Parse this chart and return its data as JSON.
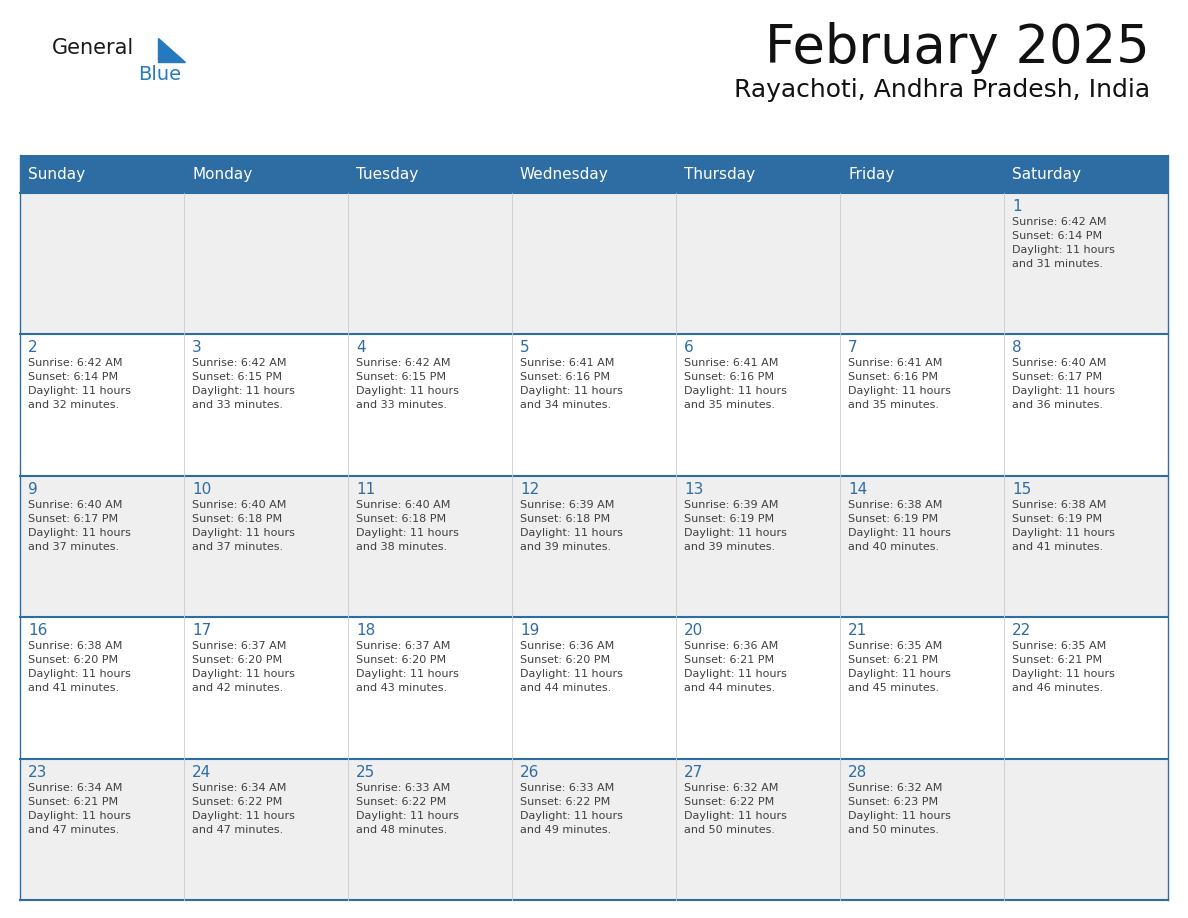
{
  "title": "February 2025",
  "subtitle": "Rayachoti, Andhra Pradesh, India",
  "header_bg": "#2E6DA4",
  "header_text": "#FFFFFF",
  "day_names": [
    "Sunday",
    "Monday",
    "Tuesday",
    "Wednesday",
    "Thursday",
    "Friday",
    "Saturday"
  ],
  "grid_line_color": "#2E6DA4",
  "cell_bg_odd": "#EFEFEF",
  "cell_bg_even": "#FFFFFF",
  "day_number_color": "#2E6DA4",
  "info_text_color": "#404040",
  "logo_general_color": "#1a1a1a",
  "logo_blue_color": "#2779BD",
  "background_color": "#FFFFFF",
  "calendar": [
    [
      null,
      null,
      null,
      null,
      null,
      null,
      {
        "day": 1,
        "sunrise": "6:42 AM",
        "sunset": "6:14 PM",
        "daylight": "11 hours and 31 minutes."
      }
    ],
    [
      {
        "day": 2,
        "sunrise": "6:42 AM",
        "sunset": "6:14 PM",
        "daylight": "11 hours and 32 minutes."
      },
      {
        "day": 3,
        "sunrise": "6:42 AM",
        "sunset": "6:15 PM",
        "daylight": "11 hours and 33 minutes."
      },
      {
        "day": 4,
        "sunrise": "6:42 AM",
        "sunset": "6:15 PM",
        "daylight": "11 hours and 33 minutes."
      },
      {
        "day": 5,
        "sunrise": "6:41 AM",
        "sunset": "6:16 PM",
        "daylight": "11 hours and 34 minutes."
      },
      {
        "day": 6,
        "sunrise": "6:41 AM",
        "sunset": "6:16 PM",
        "daylight": "11 hours and 35 minutes."
      },
      {
        "day": 7,
        "sunrise": "6:41 AM",
        "sunset": "6:16 PM",
        "daylight": "11 hours and 35 minutes."
      },
      {
        "day": 8,
        "sunrise": "6:40 AM",
        "sunset": "6:17 PM",
        "daylight": "11 hours and 36 minutes."
      }
    ],
    [
      {
        "day": 9,
        "sunrise": "6:40 AM",
        "sunset": "6:17 PM",
        "daylight": "11 hours and 37 minutes."
      },
      {
        "day": 10,
        "sunrise": "6:40 AM",
        "sunset": "6:18 PM",
        "daylight": "11 hours and 37 minutes."
      },
      {
        "day": 11,
        "sunrise": "6:40 AM",
        "sunset": "6:18 PM",
        "daylight": "11 hours and 38 minutes."
      },
      {
        "day": 12,
        "sunrise": "6:39 AM",
        "sunset": "6:18 PM",
        "daylight": "11 hours and 39 minutes."
      },
      {
        "day": 13,
        "sunrise": "6:39 AM",
        "sunset": "6:19 PM",
        "daylight": "11 hours and 39 minutes."
      },
      {
        "day": 14,
        "sunrise": "6:38 AM",
        "sunset": "6:19 PM",
        "daylight": "11 hours and 40 minutes."
      },
      {
        "day": 15,
        "sunrise": "6:38 AM",
        "sunset": "6:19 PM",
        "daylight": "11 hours and 41 minutes."
      }
    ],
    [
      {
        "day": 16,
        "sunrise": "6:38 AM",
        "sunset": "6:20 PM",
        "daylight": "11 hours and 41 minutes."
      },
      {
        "day": 17,
        "sunrise": "6:37 AM",
        "sunset": "6:20 PM",
        "daylight": "11 hours and 42 minutes."
      },
      {
        "day": 18,
        "sunrise": "6:37 AM",
        "sunset": "6:20 PM",
        "daylight": "11 hours and 43 minutes."
      },
      {
        "day": 19,
        "sunrise": "6:36 AM",
        "sunset": "6:20 PM",
        "daylight": "11 hours and 44 minutes."
      },
      {
        "day": 20,
        "sunrise": "6:36 AM",
        "sunset": "6:21 PM",
        "daylight": "11 hours and 44 minutes."
      },
      {
        "day": 21,
        "sunrise": "6:35 AM",
        "sunset": "6:21 PM",
        "daylight": "11 hours and 45 minutes."
      },
      {
        "day": 22,
        "sunrise": "6:35 AM",
        "sunset": "6:21 PM",
        "daylight": "11 hours and 46 minutes."
      }
    ],
    [
      {
        "day": 23,
        "sunrise": "6:34 AM",
        "sunset": "6:21 PM",
        "daylight": "11 hours and 47 minutes."
      },
      {
        "day": 24,
        "sunrise": "6:34 AM",
        "sunset": "6:22 PM",
        "daylight": "11 hours and 47 minutes."
      },
      {
        "day": 25,
        "sunrise": "6:33 AM",
        "sunset": "6:22 PM",
        "daylight": "11 hours and 48 minutes."
      },
      {
        "day": 26,
        "sunrise": "6:33 AM",
        "sunset": "6:22 PM",
        "daylight": "11 hours and 49 minutes."
      },
      {
        "day": 27,
        "sunrise": "6:32 AM",
        "sunset": "6:22 PM",
        "daylight": "11 hours and 50 minutes."
      },
      {
        "day": 28,
        "sunrise": "6:32 AM",
        "sunset": "6:23 PM",
        "daylight": "11 hours and 50 minutes."
      },
      null
    ]
  ]
}
